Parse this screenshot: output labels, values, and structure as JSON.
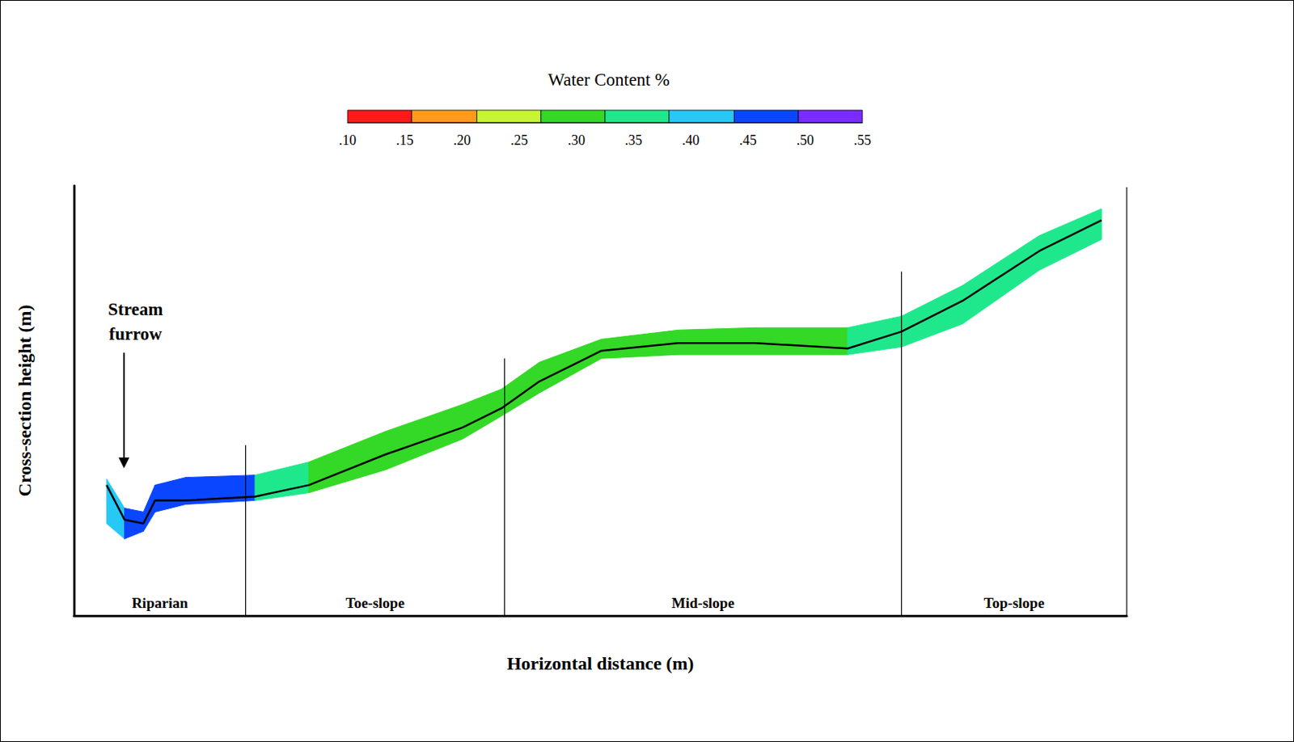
{
  "chart_data": {
    "type": "profile",
    "title": "Water Content %",
    "x_label": "Horizontal distance (m)",
    "y_label": "Cross-section height (m)",
    "tick_labels": false,
    "xlim": [
      0,
      100
    ],
    "ylim": [
      0,
      56
    ],
    "x": [
      3.1,
      4.8,
      6.6,
      7.7,
      10.6,
      17.2,
      22.3,
      29.6,
      36.9,
      40.6,
      44.2,
      50.1,
      57.4,
      64.7,
      73.5,
      78.6,
      84.4,
      91.7,
      97.6
    ],
    "top": [
      17.8,
      14.0,
      13.5,
      17.0,
      18.0,
      18.3,
      20.0,
      24.0,
      27.5,
      29.5,
      33.0,
      36.0,
      37.2,
      37.5,
      37.5,
      39.0,
      43.0,
      49.5,
      53.0
    ],
    "bottom": [
      12.0,
      10.0,
      11.0,
      13.5,
      14.5,
      15.0,
      16.0,
      19.0,
      23.0,
      26.0,
      29.0,
      33.5,
      34.0,
      34.0,
      34.0,
      35.0,
      38.0,
      45.0,
      49.0
    ],
    "horizon": [
      17.0,
      12.5,
      12.0,
      15.0,
      15.0,
      15.5,
      17.0,
      21.0,
      24.5,
      27.0,
      30.5,
      34.5,
      35.5,
      35.5,
      34.8,
      37.0,
      41.0,
      47.5,
      51.5
    ],
    "water_content": [
      0.42,
      0.47,
      0.47,
      0.47,
      0.47,
      0.33,
      0.31,
      0.3,
      0.29,
      0.28,
      0.31,
      0.32,
      0.3,
      0.32,
      0.34,
      0.36,
      0.37,
      0.36
    ],
    "color_bar": {
      "range": [
        0.1,
        0.55
      ],
      "ticks": [
        {
          "value": 0.1,
          "label": ".10"
        },
        {
          "value": 0.15,
          "label": ".15"
        },
        {
          "value": 0.2,
          "label": ".20"
        },
        {
          "value": 0.25,
          "label": ".25"
        },
        {
          "value": 0.3,
          "label": ".30"
        },
        {
          "value": 0.35,
          "label": ".35"
        },
        {
          "value": 0.4,
          "label": ".40"
        },
        {
          "value": 0.45,
          "label": ".45"
        },
        {
          "value": 0.5,
          "label": ".50"
        },
        {
          "value": 0.55,
          "label": ".55"
        }
      ],
      "edges": [
        0.1,
        0.156,
        0.213,
        0.269,
        0.325,
        0.381,
        0.438,
        0.494,
        0.55
      ],
      "colors": [
        "#ff1a1a",
        "#ff9a1a",
        "#c8f532",
        "#33d926",
        "#1fe88c",
        "#26c8f5",
        "#0a46ff",
        "#7a2bff"
      ]
    },
    "zones": [
      {
        "label": "Riparian",
        "x0": 0,
        "x1": 16.3
      },
      {
        "label": "Toe-slope",
        "x0": 16.3,
        "x1": 40.9
      },
      {
        "label": "Mid-slope",
        "x0": 40.9,
        "x1": 78.6
      },
      {
        "label": "Top-slope",
        "x0": 78.6,
        "x1": 100
      }
    ],
    "boundaries": [
      {
        "x": 16.3,
        "height": 22.2
      },
      {
        "x": 40.9,
        "height": 33.5
      },
      {
        "x": 78.6,
        "height": 44.8
      },
      {
        "x": 100,
        "height": 55.8
      }
    ],
    "annotations": [
      {
        "text": "Stream furrow",
        "x": 4.75,
        "y": 19.2
      }
    ]
  }
}
